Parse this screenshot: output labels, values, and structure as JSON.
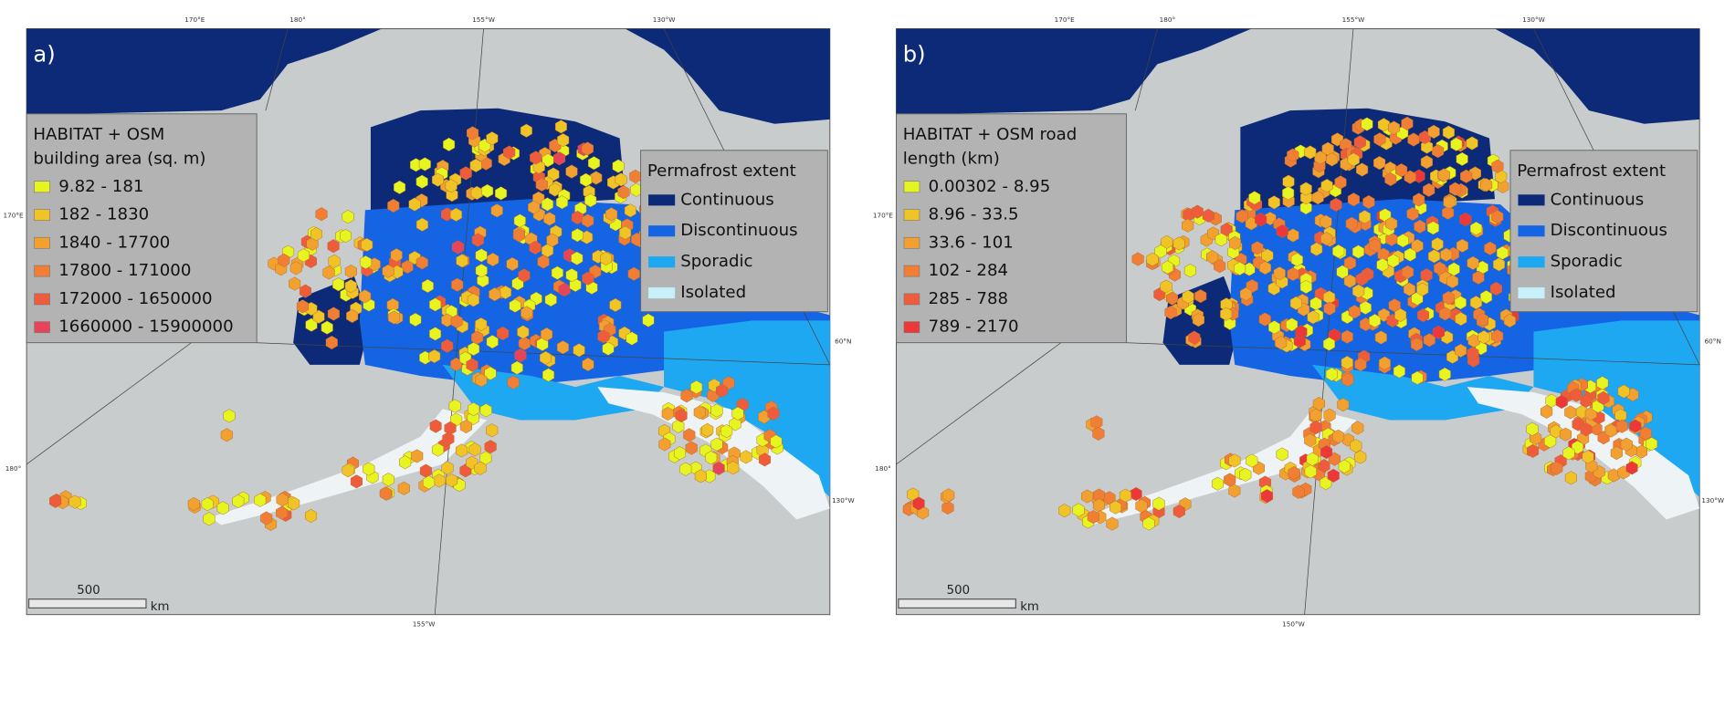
{
  "panels": [
    {
      "label": "a)",
      "legend": {
        "title_lines": [
          "HABITAT + OSM",
          "building area (sq. m)"
        ],
        "items": [
          {
            "label": "9.82 - 181",
            "color": "#e6f51f"
          },
          {
            "label": "182 - 1830",
            "color": "#f0c426"
          },
          {
            "label": "1840 - 17700",
            "color": "#f2a030"
          },
          {
            "label": "17800 - 171000",
            "color": "#f07e34"
          },
          {
            "label": "172000 - 1650000",
            "color": "#ee5c3c"
          },
          {
            "label": "1660000 - 15900000",
            "color": "#e84458"
          }
        ]
      },
      "permafrost_legend": {
        "title": "Permafrost extent",
        "items": [
          {
            "label": "Continuous",
            "color": "#0c2a78"
          },
          {
            "label": "Discontinuous",
            "color": "#1464e4"
          },
          {
            "label": "Sporadic",
            "color": "#1ea8f2"
          },
          {
            "label": "Isolated",
            "color": "#c8f0fa"
          }
        ]
      },
      "scale_bar": {
        "label": "500",
        "unit": "km"
      },
      "graticule_labels": {
        "top": [
          "170°E",
          "180°",
          "155°W",
          "130°W"
        ],
        "left": [
          "170°E",
          "180°"
        ],
        "right": [
          "60°N",
          "130°W"
        ],
        "bottom": [
          "155°W"
        ]
      }
    },
    {
      "label": "b)",
      "legend": {
        "title_lines": [
          "HABITAT + OSM road",
          "length (km)"
        ],
        "items": [
          {
            "label": "0.00302 - 8.95",
            "color": "#e6f51f"
          },
          {
            "label": "8.96 - 33.5",
            "color": "#f0c426"
          },
          {
            "label": "33.6 - 101",
            "color": "#f2a030"
          },
          {
            "label": "102 - 284",
            "color": "#f07e34"
          },
          {
            "label": "285 - 788",
            "color": "#ee5c3c"
          },
          {
            "label": "789 - 2170",
            "color": "#ec3838"
          }
        ]
      },
      "permafrost_legend": {
        "title": "Permafrost extent",
        "items": [
          {
            "label": "Continuous",
            "color": "#0c2a78"
          },
          {
            "label": "Discontinuous",
            "color": "#1464e4"
          },
          {
            "label": "Sporadic",
            "color": "#1ea8f2"
          },
          {
            "label": "Isolated",
            "color": "#c8f0fa"
          }
        ]
      },
      "scale_bar": {
        "label": "500",
        "unit": "km"
      },
      "graticule_labels": {
        "top": [
          "170°E",
          "180°",
          "155°W",
          "130°W"
        ],
        "left": [
          "170°E",
          "180°"
        ],
        "right": [
          "60°N",
          "130°W"
        ],
        "bottom": [
          "150°W"
        ]
      }
    }
  ]
}
